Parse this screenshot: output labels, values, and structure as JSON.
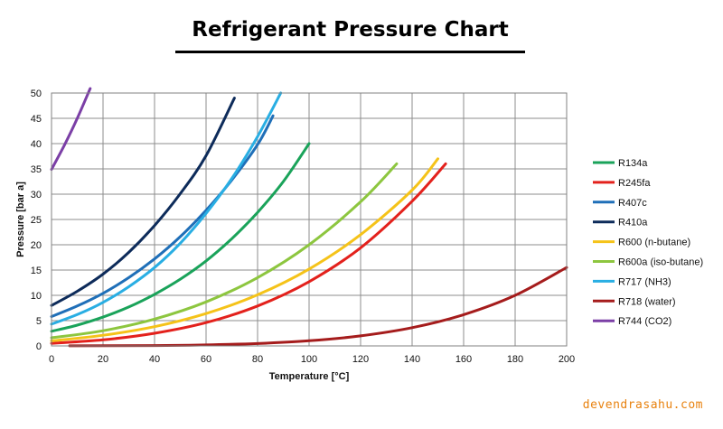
{
  "title": "Refrigerant Pressure Chart",
  "watermark": "devendrasahu.com",
  "chart_data": {
    "type": "line",
    "xlabel": "Temperature [°C]",
    "ylabel": "Pressure [bar a]",
    "xlim": [
      0,
      200
    ],
    "ylim": [
      0,
      50
    ],
    "xticks": [
      0,
      20,
      40,
      60,
      80,
      100,
      120,
      140,
      160,
      180,
      200
    ],
    "yticks": [
      0,
      5,
      10,
      15,
      20,
      25,
      30,
      35,
      40,
      45,
      50
    ],
    "grid": true,
    "legend_position": "right",
    "series": [
      {
        "name": "R134a",
        "color": "#1aa35a",
        "x": [
          0,
          10,
          20,
          30,
          40,
          50,
          60,
          70,
          80,
          90,
          100
        ],
        "y": [
          2.9,
          4.1,
          5.7,
          7.7,
          10.2,
          13.2,
          16.8,
          21.2,
          26.4,
          32.5,
          40.0
        ]
      },
      {
        "name": "R245fa",
        "color": "#e3211c",
        "x": [
          0,
          20,
          40,
          60,
          80,
          100,
          120,
          140,
          153
        ],
        "y": [
          0.5,
          1.2,
          2.5,
          4.6,
          7.9,
          12.7,
          19.4,
          28.6,
          36.0
        ]
      },
      {
        "name": "R407c",
        "color": "#1f6fb8",
        "x": [
          0,
          10,
          20,
          30,
          40,
          50,
          60,
          70,
          80,
          86
        ],
        "y": [
          5.8,
          7.9,
          10.4,
          13.5,
          17.2,
          21.6,
          26.8,
          32.8,
          39.8,
          45.5
        ]
      },
      {
        "name": "R410a",
        "color": "#0d2b5a",
        "x": [
          0,
          10,
          20,
          30,
          40,
          50,
          60,
          71
        ],
        "y": [
          8.0,
          10.8,
          14.2,
          18.5,
          23.8,
          30.1,
          37.6,
          49.0
        ]
      },
      {
        "name": "R600 (n-butane)",
        "color": "#f5c319",
        "x": [
          0,
          20,
          40,
          60,
          80,
          100,
          120,
          140,
          150
        ],
        "y": [
          1.0,
          2.1,
          3.8,
          6.4,
          10.1,
          15.2,
          22.0,
          30.8,
          37.0
        ]
      },
      {
        "name": "R600a (iso-butane)",
        "color": "#8dc63f",
        "x": [
          0,
          20,
          40,
          60,
          80,
          100,
          120,
          134
        ],
        "y": [
          1.6,
          3.0,
          5.3,
          8.7,
          13.5,
          20.0,
          28.5,
          36.0
        ]
      },
      {
        "name": "R717 (NH3)",
        "color": "#29aee3",
        "x": [
          0,
          10,
          20,
          30,
          40,
          50,
          60,
          70,
          80,
          89
        ],
        "y": [
          4.3,
          6.2,
          8.6,
          11.7,
          15.5,
          20.3,
          26.2,
          33.1,
          41.4,
          50.0
        ]
      },
      {
        "name": "R718 (water)",
        "color": "#a51c1c",
        "x": [
          7,
          40,
          60,
          80,
          100,
          120,
          140,
          160,
          180,
          200
        ],
        "y": [
          0.01,
          0.07,
          0.2,
          0.47,
          1.01,
          1.99,
          3.61,
          6.18,
          10.0,
          15.5
        ]
      },
      {
        "name": "R744 (CO2)",
        "color": "#7b3fa6",
        "x": [
          0,
          5,
          10,
          15
        ],
        "y": [
          34.9,
          39.7,
          45.0,
          50.9
        ]
      }
    ]
  }
}
